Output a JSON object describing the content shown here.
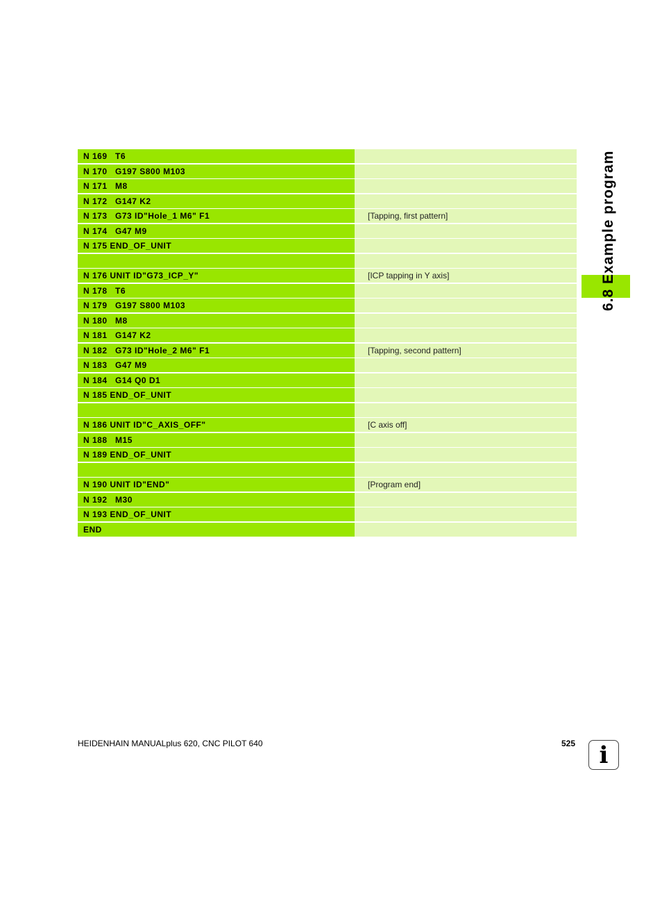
{
  "program": {
    "rows": [
      {
        "code": "N 169   T6",
        "comment": ""
      },
      {
        "code": "N 170   G197 S800 M103",
        "comment": ""
      },
      {
        "code": "N 171   M8",
        "comment": ""
      },
      {
        "code": "N 172   G147 K2",
        "comment": ""
      },
      {
        "code": "N 173   G73 ID\"Hole_1 M6\" F1",
        "comment": "[Tapping, first pattern]"
      },
      {
        "code": "N 174   G47 M9",
        "comment": ""
      },
      {
        "code": "N 175 END_OF_UNIT",
        "comment": ""
      },
      {
        "code": "",
        "comment": ""
      },
      {
        "code": "N 176 UNIT ID\"G73_ICP_Y\"",
        "comment": "[ICP tapping in Y axis]"
      },
      {
        "code": "N 178   T6",
        "comment": ""
      },
      {
        "code": "N 179   G197 S800 M103",
        "comment": ""
      },
      {
        "code": "N 180   M8",
        "comment": ""
      },
      {
        "code": "N 181   G147 K2",
        "comment": ""
      },
      {
        "code": "N 182   G73 ID\"Hole_2 M6\" F1",
        "comment": "[Tapping, second pattern]"
      },
      {
        "code": "N 183   G47 M9",
        "comment": ""
      },
      {
        "code": "N 184   G14 Q0 D1",
        "comment": ""
      },
      {
        "code": "N 185 END_OF_UNIT",
        "comment": ""
      },
      {
        "code": "",
        "comment": ""
      },
      {
        "code": "N 186 UNIT ID\"C_AXIS_OFF\"",
        "comment": "[C axis off]"
      },
      {
        "code": "N 188   M15",
        "comment": ""
      },
      {
        "code": "N 189 END_OF_UNIT",
        "comment": ""
      },
      {
        "code": "",
        "comment": ""
      },
      {
        "code": "N 190 UNIT ID\"END\"",
        "comment": "[Program end]"
      },
      {
        "code": "N 192   M30",
        "comment": ""
      },
      {
        "code": "N 193 END_OF_UNIT",
        "comment": ""
      },
      {
        "code": "END",
        "comment": ""
      }
    ]
  },
  "section": {
    "title": "6.8 Example program"
  },
  "footer": {
    "title": "HEIDENHAIN MANUALplus 620, CNC PILOT 640",
    "page_number": "525"
  },
  "icons": {
    "info": "info-icon"
  },
  "colors": {
    "code_bg": "#99e600",
    "comment_bg": "#e3f7b8",
    "tab": "#99e600"
  }
}
